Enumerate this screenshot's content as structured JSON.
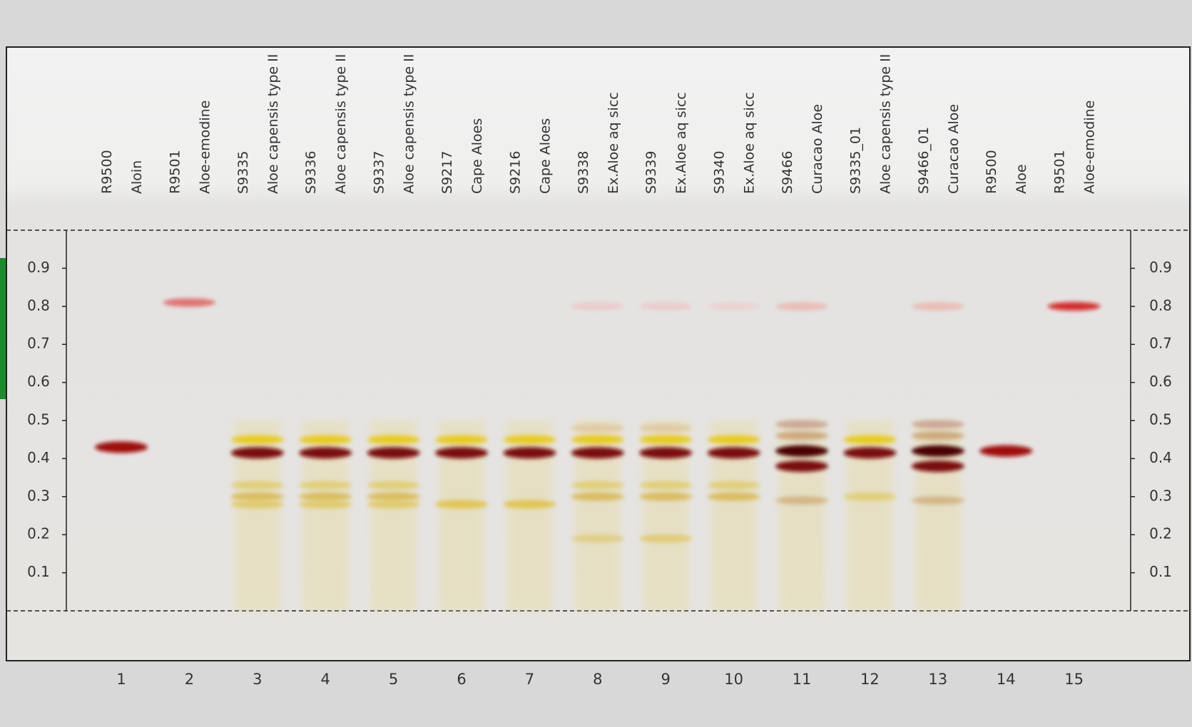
{
  "rf_axis": {
    "ticks": [
      0.1,
      0.2,
      0.3,
      0.4,
      0.5,
      0.6,
      0.7,
      0.8,
      0.9
    ],
    "lim": [
      0,
      1
    ]
  },
  "lanes": [
    {
      "number": 1,
      "sample": "R9500",
      "name": "Aloin",
      "smear": false,
      "bands": [
        {
          "rf": 0.43,
          "color": "#a0100a"
        }
      ]
    },
    {
      "number": 2,
      "sample": "R9501",
      "name": "Aloe-emodine",
      "smear": false,
      "bands": [
        {
          "rf": 0.81,
          "color": "#e06060"
        }
      ]
    },
    {
      "number": 3,
      "sample": "S9335",
      "name": "Aloe capensis type II",
      "smear": true,
      "bands": [
        {
          "rf": 0.45,
          "color": "#e8c800"
        },
        {
          "rf": 0.415,
          "color": "#7a0a0a"
        },
        {
          "rf": 0.33,
          "color": "#e0cc70"
        },
        {
          "rf": 0.3,
          "color": "#d8b850"
        },
        {
          "rf": 0.28,
          "color": "#e0c860"
        }
      ]
    },
    {
      "number": 4,
      "sample": "S9336",
      "name": "Aloe capensis type II",
      "smear": true,
      "bands": [
        {
          "rf": 0.45,
          "color": "#e8c800"
        },
        {
          "rf": 0.415,
          "color": "#7a0a0a"
        },
        {
          "rf": 0.33,
          "color": "#e0cc70"
        },
        {
          "rf": 0.3,
          "color": "#d8b850"
        },
        {
          "rf": 0.28,
          "color": "#e0c860"
        }
      ]
    },
    {
      "number": 5,
      "sample": "S9337",
      "name": "Aloe capensis type II",
      "smear": true,
      "bands": [
        {
          "rf": 0.45,
          "color": "#e8c800"
        },
        {
          "rf": 0.415,
          "color": "#7a0a0a"
        },
        {
          "rf": 0.33,
          "color": "#e0cc70"
        },
        {
          "rf": 0.3,
          "color": "#d8b850"
        },
        {
          "rf": 0.28,
          "color": "#e0c860"
        }
      ]
    },
    {
      "number": 6,
      "sample": "S9217",
      "name": "Cape Aloes",
      "smear": true,
      "bands": [
        {
          "rf": 0.45,
          "color": "#e8c800"
        },
        {
          "rf": 0.415,
          "color": "#7a0a0a"
        },
        {
          "rf": 0.28,
          "color": "#e0c040"
        }
      ]
    },
    {
      "number": 7,
      "sample": "S9216",
      "name": "Cape Aloes",
      "smear": true,
      "bands": [
        {
          "rf": 0.45,
          "color": "#e8c800"
        },
        {
          "rf": 0.415,
          "color": "#7a0a0a"
        },
        {
          "rf": 0.28,
          "color": "#e0c040"
        }
      ]
    },
    {
      "number": 8,
      "sample": "S9338",
      "name": "Ex.Aloe aq sicc",
      "smear": true,
      "bands": [
        {
          "rf": 0.8,
          "color": "#ecc8c8"
        },
        {
          "rf": 0.48,
          "color": "#e0c8a0"
        },
        {
          "rf": 0.45,
          "color": "#e8c800"
        },
        {
          "rf": 0.415,
          "color": "#7a0a0a"
        },
        {
          "rf": 0.33,
          "color": "#e0cc70"
        },
        {
          "rf": 0.3,
          "color": "#d8b850"
        },
        {
          "rf": 0.19,
          "color": "#e0cc80"
        }
      ]
    },
    {
      "number": 9,
      "sample": "S9339",
      "name": "Ex.Aloe aq sicc",
      "smear": true,
      "bands": [
        {
          "rf": 0.8,
          "color": "#ecc8c8"
        },
        {
          "rf": 0.48,
          "color": "#e0c8a0"
        },
        {
          "rf": 0.45,
          "color": "#e8c800"
        },
        {
          "rf": 0.415,
          "color": "#7a0a0a"
        },
        {
          "rf": 0.33,
          "color": "#e0cc70"
        },
        {
          "rf": 0.3,
          "color": "#d8b850"
        },
        {
          "rf": 0.19,
          "color": "#e0c870"
        }
      ]
    },
    {
      "number": 10,
      "sample": "S9340",
      "name": "Ex.Aloe aq sicc",
      "smear": true,
      "bands": [
        {
          "rf": 0.8,
          "color": "#ecd0d0"
        },
        {
          "rf": 0.45,
          "color": "#e8c800"
        },
        {
          "rf": 0.415,
          "color": "#7a0a0a"
        },
        {
          "rf": 0.33,
          "color": "#e0cc70"
        },
        {
          "rf": 0.3,
          "color": "#d8b850"
        }
      ]
    },
    {
      "number": 11,
      "sample": "S9466",
      "name": "Curacao Aloe",
      "smear": true,
      "bands": [
        {
          "rf": 0.8,
          "color": "#eab8b0"
        },
        {
          "rf": 0.49,
          "color": "#c8a090"
        },
        {
          "rf": 0.46,
          "color": "#c8a070"
        },
        {
          "rf": 0.42,
          "color": "#4a0505"
        },
        {
          "rf": 0.38,
          "color": "#7a1010"
        },
        {
          "rf": 0.29,
          "color": "#d0b080"
        }
      ]
    },
    {
      "number": 12,
      "sample": "S9335_01",
      "name": "Aloe capensis type II",
      "smear": true,
      "bands": [
        {
          "rf": 0.45,
          "color": "#e8c800"
        },
        {
          "rf": 0.415,
          "color": "#7a0a0a"
        },
        {
          "rf": 0.3,
          "color": "#e0cc70"
        }
      ]
    },
    {
      "number": 13,
      "sample": "S9466_01",
      "name": "Curacao Aloe",
      "smear": true,
      "bands": [
        {
          "rf": 0.8,
          "color": "#eab8b0"
        },
        {
          "rf": 0.49,
          "color": "#c8a090"
        },
        {
          "rf": 0.46,
          "color": "#c8a070"
        },
        {
          "rf": 0.42,
          "color": "#4a0505"
        },
        {
          "rf": 0.38,
          "color": "#7a1010"
        },
        {
          "rf": 0.29,
          "color": "#d0b080"
        }
      ]
    },
    {
      "number": 14,
      "sample": "R9500",
      "name": "Aloe",
      "smear": false,
      "bands": [
        {
          "rf": 0.42,
          "color": "#a0100a"
        }
      ]
    },
    {
      "number": 15,
      "sample": "R9501",
      "name": "Aloe-emodine",
      "smear": false,
      "bands": [
        {
          "rf": 0.8,
          "color": "#d01010"
        }
      ]
    }
  ]
}
